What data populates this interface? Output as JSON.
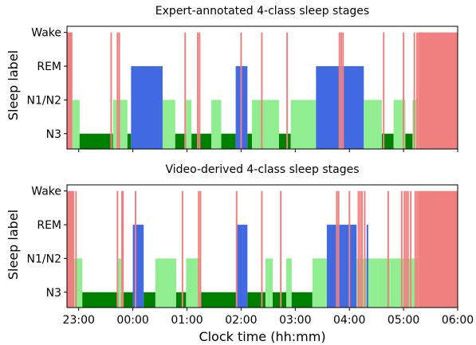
{
  "chart_data": [
    {
      "type": "area",
      "title": "Expert-annotated 4-class sleep stages",
      "ylabel": "Sleep label",
      "xlabel": "",
      "xlim": [
        "22:47",
        "06:00"
      ],
      "y_categories": [
        "N3",
        "N1/N2",
        "REM",
        "Wake"
      ],
      "colors": {
        "Wake": "#f08080",
        "REM": "#4169e1",
        "N1/N2": "#90ee90",
        "N3": "#008000"
      },
      "segments": [
        {
          "start": "22:47",
          "end": "22:53",
          "stage": "Wake"
        },
        {
          "start": "22:53",
          "end": "23:01",
          "stage": "N1/N2"
        },
        {
          "start": "23:01",
          "end": "23:38",
          "stage": "N3"
        },
        {
          "start": "23:38",
          "end": "23:54",
          "stage": "N1/N2"
        },
        {
          "start": "23:54",
          "end": "23:58",
          "stage": "N3"
        },
        {
          "start": "23:58",
          "end": "00:33",
          "stage": "REM"
        },
        {
          "start": "00:33",
          "end": "00:47",
          "stage": "N1/N2"
        },
        {
          "start": "00:47",
          "end": "00:59",
          "stage": "N3"
        },
        {
          "start": "00:59",
          "end": "01:05",
          "stage": "N1/N2"
        },
        {
          "start": "01:05",
          "end": "01:27",
          "stage": "N3"
        },
        {
          "start": "01:27",
          "end": "01:38",
          "stage": "N1/N2"
        },
        {
          "start": "01:38",
          "end": "01:54",
          "stage": "N3"
        },
        {
          "start": "01:54",
          "end": "02:07",
          "stage": "REM"
        },
        {
          "start": "02:07",
          "end": "02:12",
          "stage": "N3"
        },
        {
          "start": "02:12",
          "end": "02:42",
          "stage": "N1/N2"
        },
        {
          "start": "02:42",
          "end": "02:55",
          "stage": "N3"
        },
        {
          "start": "02:55",
          "end": "03:23",
          "stage": "N1/N2"
        },
        {
          "start": "03:23",
          "end": "04:16",
          "stage": "REM"
        },
        {
          "start": "04:16",
          "end": "04:36",
          "stage": "N1/N2"
        },
        {
          "start": "04:36",
          "end": "04:49",
          "stage": "N3"
        },
        {
          "start": "04:49",
          "end": "05:02",
          "stage": "N1/N2"
        },
        {
          "start": "05:02",
          "end": "05:10",
          "stage": "N3"
        },
        {
          "start": "05:10",
          "end": "05:16",
          "stage": "N1/N2"
        },
        {
          "start": "05:16",
          "end": "06:00",
          "stage": "Wake"
        }
      ],
      "wake_spikes": [
        "22:50",
        "22:52",
        "23:36",
        "23:43",
        "23:45",
        "00:58",
        "01:12",
        "01:14",
        "02:00",
        "02:23",
        "02:51",
        "03:49",
        "03:51",
        "03:53",
        "04:38",
        "05:00",
        "05:12",
        "05:15",
        "05:20"
      ]
    },
    {
      "type": "area",
      "title": "Video-derived 4-class sleep stages",
      "ylabel": "Sleep label",
      "xlabel": "Clock time (hh:mm)",
      "xlim": [
        "22:47",
        "06:00"
      ],
      "xticks": [
        "23:00",
        "00:00",
        "01:00",
        "02:00",
        "03:00",
        "04:00",
        "05:00",
        "06:00"
      ],
      "y_categories": [
        "N3",
        "N1/N2",
        "REM",
        "Wake"
      ],
      "colors": {
        "Wake": "#f08080",
        "REM": "#4169e1",
        "N1/N2": "#90ee90",
        "N3": "#008000"
      },
      "segments": [
        {
          "start": "22:47",
          "end": "22:55",
          "stage": "Wake"
        },
        {
          "start": "22:55",
          "end": "23:04",
          "stage": "N1/N2"
        },
        {
          "start": "23:04",
          "end": "23:44",
          "stage": "N3"
        },
        {
          "start": "23:44",
          "end": "23:47",
          "stage": "N1/N2"
        },
        {
          "start": "23:47",
          "end": "24:00",
          "stage": "N3"
        },
        {
          "start": "00:00",
          "end": "00:12",
          "stage": "REM"
        },
        {
          "start": "00:12",
          "end": "00:25",
          "stage": "N3"
        },
        {
          "start": "00:25",
          "end": "00:48",
          "stage": "N1/N2"
        },
        {
          "start": "00:48",
          "end": "00:59",
          "stage": "N3"
        },
        {
          "start": "00:59",
          "end": "01:14",
          "stage": "N1/N2"
        },
        {
          "start": "01:14",
          "end": "01:55",
          "stage": "N3"
        },
        {
          "start": "01:55",
          "end": "02:07",
          "stage": "REM"
        },
        {
          "start": "02:07",
          "end": "02:27",
          "stage": "N3"
        },
        {
          "start": "02:27",
          "end": "02:35",
          "stage": "N1/N2"
        },
        {
          "start": "02:35",
          "end": "02:50",
          "stage": "N3"
        },
        {
          "start": "02:50",
          "end": "02:56",
          "stage": "N1/N2"
        },
        {
          "start": "02:56",
          "end": "03:19",
          "stage": "N3"
        },
        {
          "start": "03:19",
          "end": "03:35",
          "stage": "N1/N2"
        },
        {
          "start": "03:35",
          "end": "04:08",
          "stage": "REM"
        },
        {
          "start": "04:08",
          "end": "04:32",
          "stage": "N1/N2"
        },
        {
          "start": "04:32",
          "end": "04:45",
          "stage": "N1/N2"
        },
        {
          "start": "04:45",
          "end": "05:00",
          "stage": "N1/N2"
        },
        {
          "start": "05:00",
          "end": "05:10",
          "stage": "N1/N2"
        },
        {
          "start": "05:10",
          "end": "05:16",
          "stage": "N1/N2"
        },
        {
          "start": "05:16",
          "end": "06:00",
          "stage": "Wake"
        }
      ],
      "rem_spikes": [
        "04:20"
      ],
      "wake_spikes": [
        "22:57",
        "23:43",
        "23:48",
        "23:49",
        "00:03",
        "00:55",
        "01:13",
        "01:15",
        "01:55",
        "02:23",
        "02:44",
        "03:46",
        "03:48",
        "04:00",
        "04:10",
        "04:12",
        "04:14",
        "04:17",
        "04:43",
        "04:58",
        "05:01",
        "05:03",
        "05:05",
        "05:08",
        "05:13",
        "05:15"
      ]
    }
  ]
}
